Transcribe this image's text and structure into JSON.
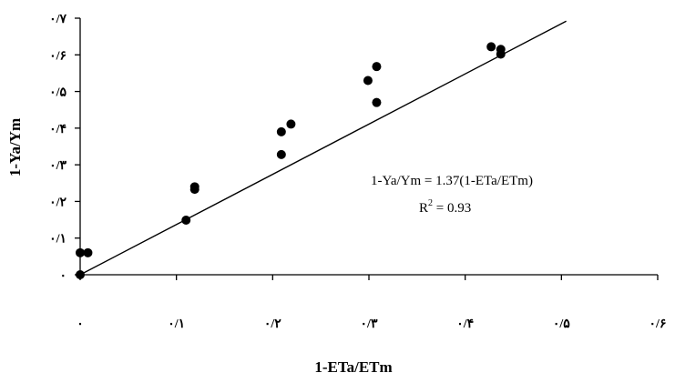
{
  "chart_data": {
    "type": "scatter",
    "title": "",
    "xlabel": "1-ETa/ETm",
    "ylabel": "1-Ya/Ym",
    "xlim": [
      0,
      0.6
    ],
    "ylim": [
      0,
      0.7
    ],
    "x_ticks": [
      {
        "value": 0,
        "label": "۰"
      },
      {
        "value": 0.1,
        "label": "۰/۱"
      },
      {
        "value": 0.2,
        "label": "۰/۲"
      },
      {
        "value": 0.3,
        "label": "۰/۳"
      },
      {
        "value": 0.4,
        "label": "۰/۴"
      },
      {
        "value": 0.5,
        "label": "۰/۵"
      },
      {
        "value": 0.6,
        "label": "۰/۶"
      }
    ],
    "y_ticks": [
      {
        "value": 0,
        "label": "۰"
      },
      {
        "value": 0.1,
        "label": "۰/۱"
      },
      {
        "value": 0.2,
        "label": "۰/۲"
      },
      {
        "value": 0.3,
        "label": "۰/۳"
      },
      {
        "value": 0.4,
        "label": "۰/۴"
      },
      {
        "value": 0.5,
        "label": "۰/۵"
      },
      {
        "value": 0.6,
        "label": "۰/۶"
      },
      {
        "value": 0.7,
        "label": "۰/۷"
      }
    ],
    "series": [
      {
        "points": [
          {
            "x": 0.0,
            "y": 0.0
          },
          {
            "x": 0.0,
            "y": 0.06
          },
          {
            "x": 0.008,
            "y": 0.06
          },
          {
            "x": 0.11,
            "y": 0.149
          },
          {
            "x": 0.119,
            "y": 0.233
          },
          {
            "x": 0.119,
            "y": 0.24
          },
          {
            "x": 0.209,
            "y": 0.328
          },
          {
            "x": 0.209,
            "y": 0.39
          },
          {
            "x": 0.219,
            "y": 0.411
          },
          {
            "x": 0.299,
            "y": 0.53
          },
          {
            "x": 0.308,
            "y": 0.47
          },
          {
            "x": 0.308,
            "y": 0.568
          },
          {
            "x": 0.427,
            "y": 0.622
          },
          {
            "x": 0.437,
            "y": 0.602
          },
          {
            "x": 0.437,
            "y": 0.615
          }
        ]
      }
    ],
    "trendline": {
      "slope": 1.37,
      "intercept": 0,
      "x_range": [
        0,
        0.505
      ]
    },
    "annotation": {
      "equation": "1-Ya/Ym = 1.37(1-ETa/ETm)",
      "r2_prefix": "R",
      "r2_superscript": "2",
      "r2_value": " = 0.93"
    },
    "grid": false,
    "legend": "none",
    "colors": {
      "marker": "#000000",
      "line": "#000000",
      "axis": "#000000"
    }
  }
}
